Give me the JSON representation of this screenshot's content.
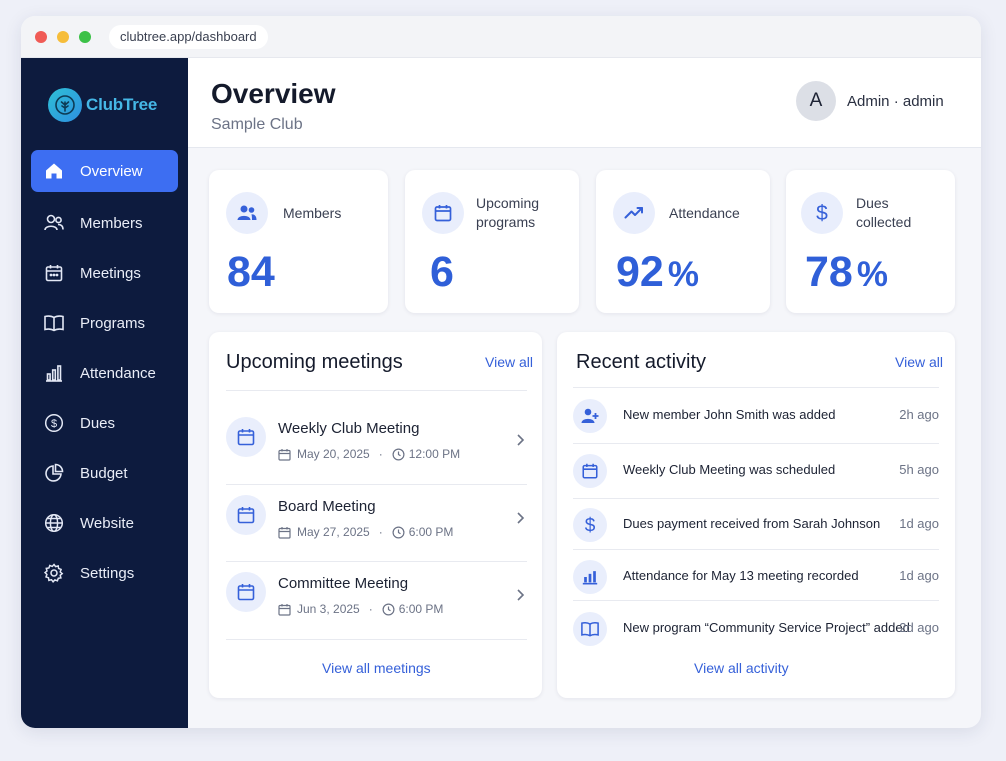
{
  "browser": {
    "url": "clubtree.app/dashboard"
  },
  "brand": {
    "name": "ClubTree",
    "accent": "#3d6ef2",
    "sidebar_bg": "#0d1b3e"
  },
  "sidebar": {
    "items": [
      {
        "label": "Overview",
        "icon": "home-icon",
        "active": true
      },
      {
        "label": "Members",
        "icon": "users-icon"
      },
      {
        "label": "Meetings",
        "icon": "calendar-icon"
      },
      {
        "label": "Programs",
        "icon": "book-icon"
      },
      {
        "label": "Attendance",
        "icon": "bar-chart-icon"
      },
      {
        "label": "Dues",
        "icon": "dollar-circle-icon"
      },
      {
        "label": "Budget",
        "icon": "pie-chart-icon"
      },
      {
        "label": "Website",
        "icon": "globe-icon"
      },
      {
        "label": "Settings",
        "icon": "gear-icon"
      }
    ]
  },
  "header": {
    "title": "Overview",
    "subtitle": "Sample Club",
    "avatar_initial": "A",
    "user_name": "Admin",
    "user_role": "admin"
  },
  "stats": [
    {
      "label_line1": "Members",
      "label_line2": "",
      "value": "84",
      "suffix": "",
      "icon": "users-icon"
    },
    {
      "label_line1": "Upcoming",
      "label_line2": "programs",
      "value": "6",
      "suffix": "",
      "icon": "calendar-icon"
    },
    {
      "label_line1": "Attendance",
      "label_line2": "",
      "value": "92",
      "suffix": "%",
      "icon": "trending-up-icon"
    },
    {
      "label_line1": "Dues",
      "label_line2": "collected",
      "value": "78",
      "suffix": "%",
      "icon": "dollar-icon"
    }
  ],
  "meetings": {
    "title": "Upcoming meetings",
    "view_all": "View all",
    "footer": "View all meetings",
    "items": [
      {
        "title": "Weekly Club Meeting",
        "date": "May 20, 2025",
        "time": "12:00 PM"
      },
      {
        "title": "Board Meeting",
        "date": "May 27, 2025",
        "time": "6:00 PM"
      },
      {
        "title": "Committee Meeting",
        "date": "Jun 3, 2025",
        "time": "6:00 PM"
      }
    ]
  },
  "activity": {
    "title": "Recent activity",
    "view_all": "View all",
    "footer": "View all activity",
    "items": [
      {
        "text": "New member John Smith was added",
        "time": "2h ago",
        "icon": "user-plus-icon"
      },
      {
        "text": "Weekly Club Meeting was scheduled",
        "time": "5h ago",
        "icon": "calendar-icon"
      },
      {
        "text": "Dues payment received from Sarah Johnson",
        "time": "1d ago",
        "icon": "dollar-icon"
      },
      {
        "text": "Attendance for May 13 meeting recorded",
        "time": "1d ago",
        "icon": "bar-chart-icon"
      },
      {
        "text": "New program “Community Service Project” added",
        "time": "2d ago",
        "icon": "book-icon"
      }
    ]
  }
}
